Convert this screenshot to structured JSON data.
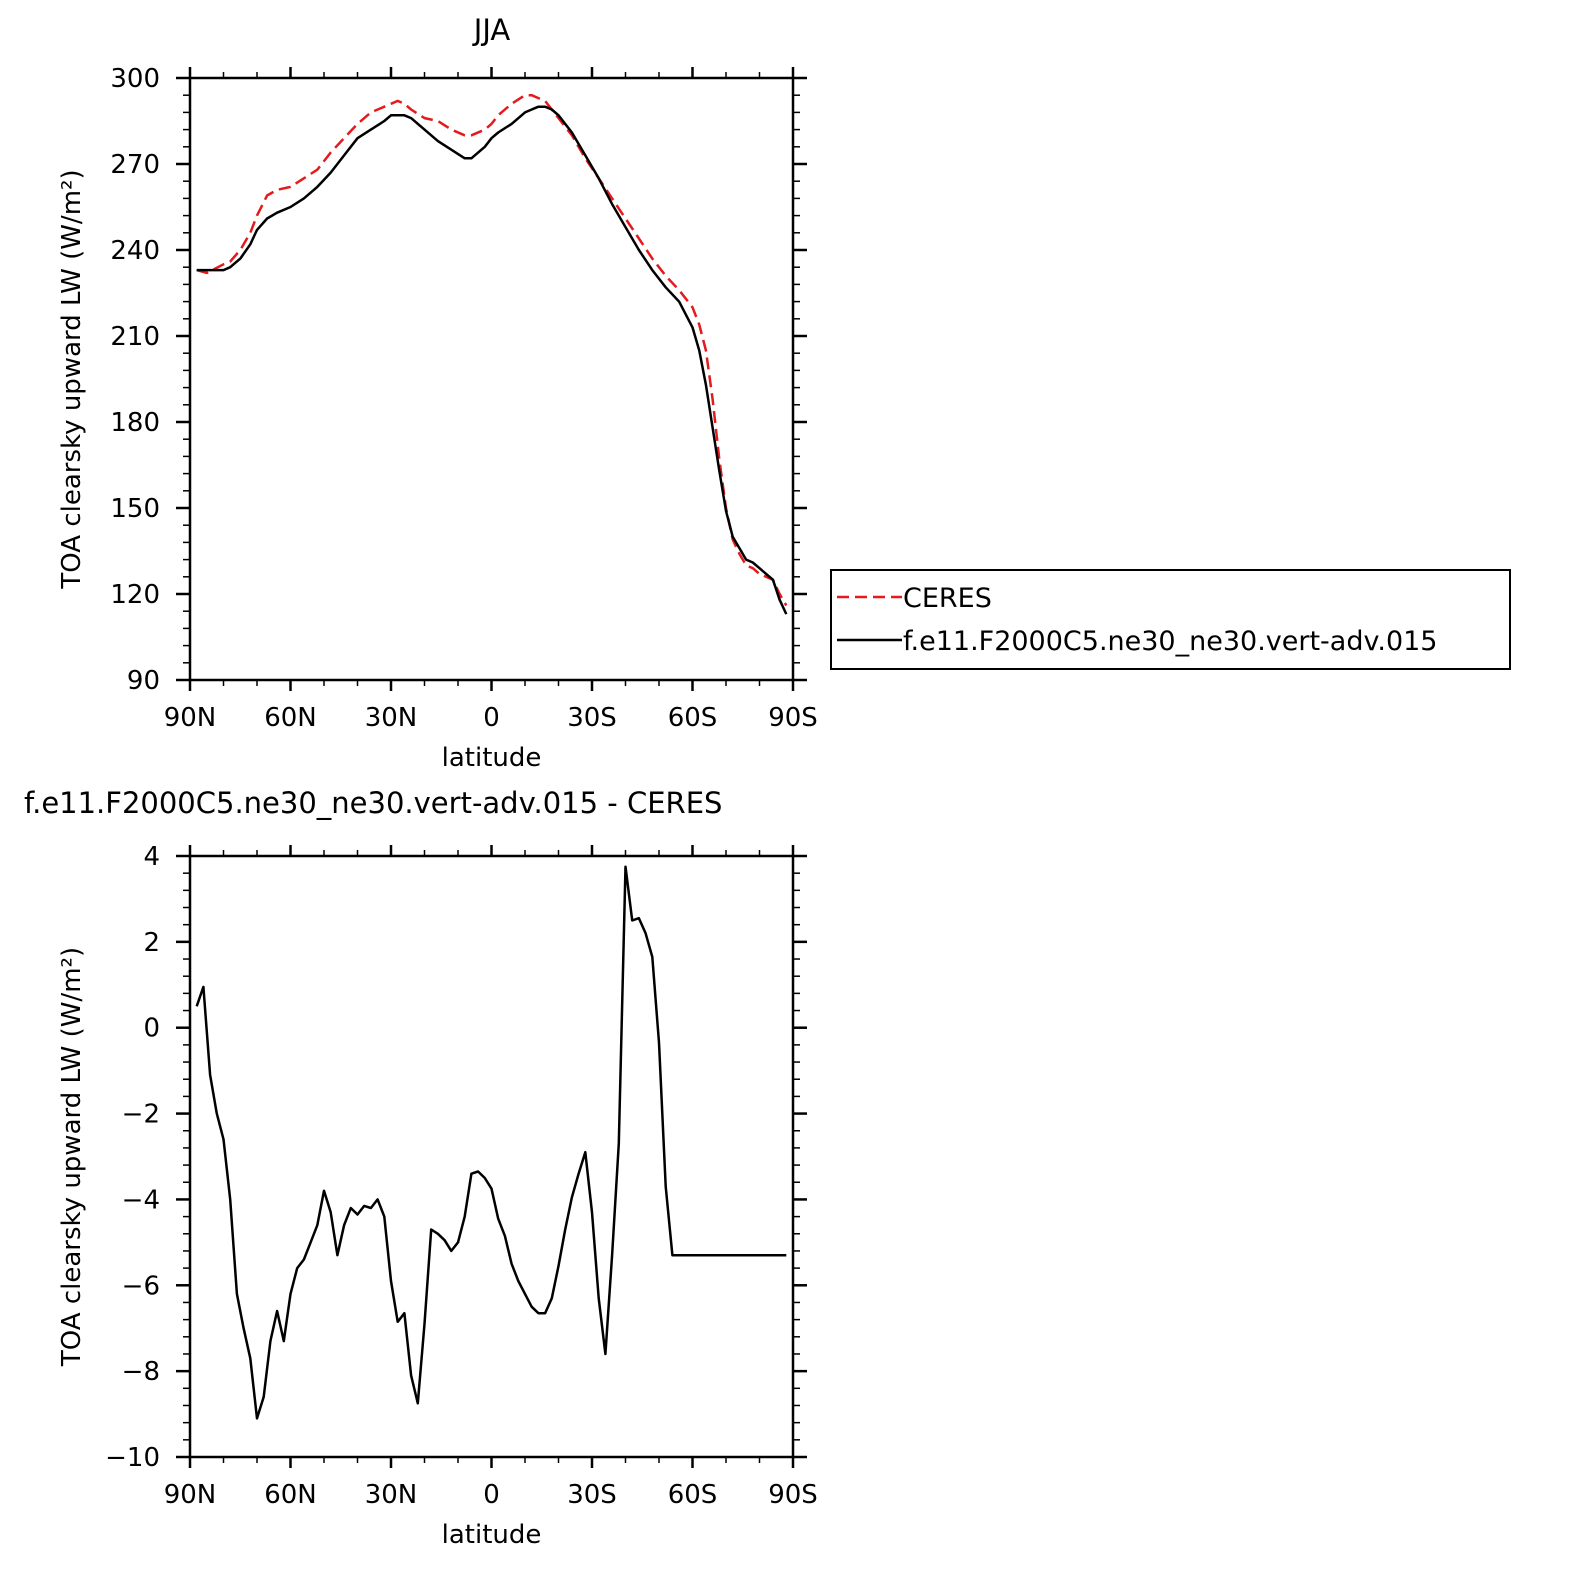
{
  "chart_data": [
    {
      "type": "line",
      "title": "JJA",
      "xlabel": "latitude",
      "ylabel": "TOA clearsky upward LW (W/m²)",
      "xlim": [
        90,
        -90
      ],
      "ylim": [
        90,
        300
      ],
      "x_ticks": [
        90,
        60,
        30,
        0,
        -30,
        -60,
        -90
      ],
      "x_tick_labels": [
        "90N",
        "60N",
        "30N",
        "0",
        "30S",
        "60S",
        "90S"
      ],
      "y_ticks": [
        90,
        120,
        150,
        180,
        210,
        240,
        270,
        300
      ],
      "y_tick_labels": [
        "90",
        "120",
        "150",
        "180",
        "210",
        "240",
        "270",
        "300"
      ],
      "legend": {
        "placement": "right",
        "entries": [
          "CERES",
          "f.e11.F2000C5.ne30_ne30.vert-adv.015"
        ]
      },
      "series": [
        {
          "name": "CERES",
          "color": "#e41a1c",
          "dash": "dashed",
          "x": [
            88,
            85,
            80,
            78,
            75,
            72,
            70,
            67,
            64,
            60,
            56,
            52,
            48,
            44,
            40,
            36,
            32,
            30,
            28,
            26,
            24,
            20,
            16,
            12,
            8,
            6,
            2,
            0,
            -2,
            -6,
            -10,
            -12,
            -14,
            -16,
            -18,
            -20,
            -24,
            -28,
            -32,
            -36,
            -40,
            -44,
            -48,
            -52,
            -56,
            -60,
            -62,
            -64,
            -66,
            -68,
            -70,
            -72,
            -74,
            -76,
            -78,
            -80,
            -84,
            -86,
            -88
          ],
          "y": [
            233,
            232,
            235,
            236,
            240,
            246,
            252,
            259,
            261,
            262,
            265,
            268,
            274,
            279,
            284,
            288,
            290,
            291,
            292,
            291,
            289,
            286,
            285,
            282,
            280,
            280,
            282,
            284,
            287,
            291,
            294,
            294,
            293,
            292,
            289,
            286,
            280,
            272,
            265,
            258,
            251,
            244,
            237,
            231,
            226,
            220,
            214,
            205,
            188,
            167,
            150,
            139,
            134,
            130,
            129,
            127,
            125,
            120,
            116
          ]
        },
        {
          "name": "f.e11.F2000C5.ne30_ne30.vert-adv.015",
          "color": "#000000",
          "dash": "solid",
          "x": [
            88,
            85,
            80,
            78,
            75,
            72,
            70,
            67,
            64,
            60,
            56,
            52,
            48,
            44,
            40,
            36,
            32,
            30,
            28,
            26,
            24,
            20,
            16,
            12,
            8,
            6,
            2,
            0,
            -2,
            -6,
            -10,
            -12,
            -14,
            -16,
            -18,
            -20,
            -24,
            -28,
            -32,
            -36,
            -40,
            -44,
            -48,
            -52,
            -56,
            -60,
            -62,
            -64,
            -66,
            -68,
            -70,
            -72,
            -74,
            -76,
            -78,
            -80,
            -84,
            -86,
            -88
          ],
          "y": [
            233,
            233,
            233,
            234,
            237,
            242,
            247,
            251,
            253,
            255,
            258,
            262,
            267,
            273,
            279,
            282,
            285,
            287,
            287,
            287,
            286,
            282,
            278,
            275,
            272,
            272,
            276,
            279,
            281,
            284,
            288,
            289,
            290,
            290,
            289,
            287,
            281,
            273,
            265,
            256,
            248,
            240,
            233,
            227,
            222,
            213,
            205,
            193,
            178,
            163,
            149,
            140,
            136,
            132,
            131,
            129,
            125,
            118,
            113
          ]
        }
      ]
    },
    {
      "type": "line",
      "title": "f.e11.F2000C5.ne30_ne30.vert-adv.015 - CERES",
      "xlabel": "latitude",
      "ylabel": "TOA clearsky upward LW (W/m²)",
      "xlim": [
        90,
        -90
      ],
      "ylim": [
        -10,
        4
      ],
      "x_ticks": [
        90,
        60,
        30,
        0,
        -30,
        -60,
        -90
      ],
      "x_tick_labels": [
        "90N",
        "60N",
        "30N",
        "0",
        "30S",
        "60S",
        "90S"
      ],
      "y_ticks": [
        -10,
        -8,
        -6,
        -4,
        -2,
        0,
        2,
        4
      ],
      "y_tick_labels": [
        "−10",
        "−8",
        "−6",
        "−4",
        "−2",
        "0",
        "2",
        "4"
      ],
      "series": [
        {
          "color": "#000000",
          "dash": "solid",
          "x": [
            88,
            86,
            84,
            82,
            80,
            78,
            76,
            74,
            72,
            70,
            68,
            66,
            64,
            62,
            60,
            58,
            56,
            54,
            52,
            50,
            48,
            46,
            44,
            42,
            40,
            38,
            36,
            34,
            32,
            30,
            28,
            26,
            24,
            22,
            20,
            18,
            16,
            14,
            12,
            10,
            8,
            6,
            4,
            2,
            0,
            -2,
            -4,
            -6,
            -8,
            -10,
            -12,
            -14,
            -16,
            -18,
            -20,
            -22,
            -24,
            -26,
            -28,
            -30,
            -32,
            -34,
            -36,
            -38,
            -40,
            -42,
            -44,
            -46,
            -48,
            -50,
            -52,
            -54,
            -56,
            -58,
            -60,
            -62,
            -64,
            -66,
            -68,
            -70,
            -72,
            -74,
            -76,
            -78,
            -80,
            -82,
            -84,
            -86,
            -88
          ],
          "y": [
            0.5,
            0.95,
            -1.1,
            -2.0,
            -2.6,
            -4.0,
            -6.2,
            -7.0,
            -7.7,
            -9.1,
            -8.6,
            -7.3,
            -6.6,
            -7.3,
            -6.2,
            -5.6,
            -5.4,
            -5.0,
            -4.6,
            -3.8,
            -4.3,
            -5.3,
            -4.6,
            -4.2,
            -4.35,
            -4.15,
            -4.2,
            -4.0,
            -4.4,
            -5.9,
            -6.85,
            -6.65,
            -8.1,
            -8.75,
            -6.9,
            -4.7,
            -4.8,
            -4.95,
            -5.2,
            -5.0,
            -4.4,
            -3.4,
            -3.35,
            -3.5,
            -3.75,
            -4.45,
            -4.85,
            -5.5,
            -5.9,
            -6.2,
            -6.5,
            -6.65,
            -6.65,
            -6.3,
            -5.55,
            -4.7,
            -3.95,
            -3.4,
            -2.9,
            -4.3,
            -6.3,
            -7.6,
            -5.3,
            -2.7,
            3.75,
            2.5,
            2.55,
            2.2,
            1.65,
            -0.35,
            -3.7,
            -5.3,
            -5.3,
            -5.3,
            -5.3,
            -5.3,
            -5.3,
            -5.3,
            -5.3,
            -5.3,
            -5.3,
            -5.3,
            -5.3,
            -5.3,
            -5.3,
            -5.3,
            -5.3,
            -5.3,
            -5.3
          ]
        }
      ]
    }
  ]
}
